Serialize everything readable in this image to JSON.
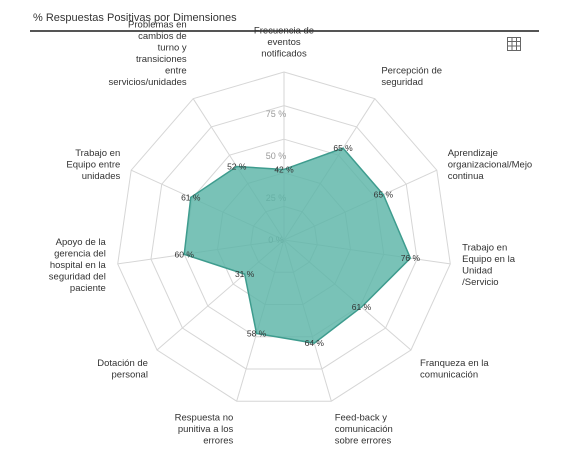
{
  "title": "% Respuestas Positivas por Dimensiones",
  "icons": {
    "table_view": "grid-table-icon"
  },
  "colors": {
    "fill": "#5bb5a7",
    "stroke": "#3e9c8e",
    "grid": "#d6d6d6"
  },
  "chart_data": {
    "type": "radar",
    "title": "% Respuestas Positivas por Dimensiones",
    "axis_ticks": [
      "0 %",
      "25 %",
      "50 %",
      "75 %"
    ],
    "rmax": 100,
    "categories": [
      [
        "Frecuencia de",
        "eventos",
        "notificados"
      ],
      [
        "Percepción de",
        "seguridad"
      ],
      [
        "Aprendizaje",
        "organizacional/Mejo",
        "continua"
      ],
      [
        "Trabajo en",
        "Equipo en la",
        "Unidad",
        "/Servicio"
      ],
      [
        "Franqueza en la",
        "comunicación"
      ],
      [
        "Feed-back y",
        "comunicación",
        "sobre errores"
      ],
      [
        "Respuesta no",
        "punitiva a los",
        "errores"
      ],
      [
        "Dotación de",
        "personal"
      ],
      [
        "Apoyo de la",
        "gerencia del",
        "hospital en la",
        "seguridad del",
        "paciente"
      ],
      [
        "Trabajo en",
        "Equipo entre",
        "unidades"
      ],
      [
        "Problemas en",
        "cambios de",
        "turno y",
        "transiciones",
        "entre",
        "servicios/unidades"
      ]
    ],
    "values": [
      42,
      65,
      65,
      76,
      61,
      64,
      58,
      31,
      60,
      61,
      52
    ],
    "value_labels": [
      "42 %",
      "65 %",
      "65 %",
      "76 %",
      "61 %",
      "64 %",
      "58 %",
      "31 %",
      "60 %",
      "61 %",
      "52 %"
    ]
  }
}
